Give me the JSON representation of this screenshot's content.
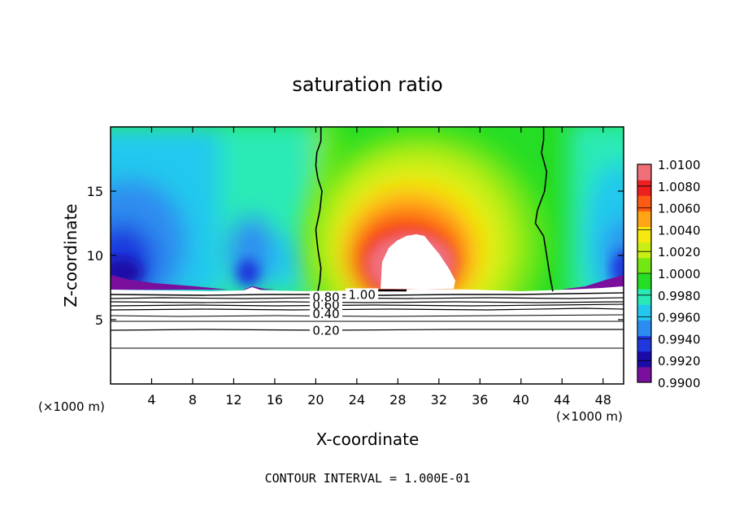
{
  "chart_data": {
    "type": "heatmap",
    "title": "saturation ratio",
    "xlabel": "X-coordinate",
    "ylabel": "Z-coordinate",
    "x_units_left": "(×1000 m)",
    "x_units_right": "(×1000 m)",
    "xlim": [
      0,
      50
    ],
    "ylim": [
      0,
      20
    ],
    "x_ticks": [
      4,
      8,
      12,
      16,
      20,
      24,
      28,
      32,
      36,
      40,
      44,
      48
    ],
    "y_ticks": [
      5,
      10,
      15
    ],
    "footer": "CONTOUR INTERVAL = 1.000E-01",
    "colorbar": {
      "min": 0.99,
      "max": 1.01,
      "labels": [
        "1.0100",
        "1.0080",
        "1.0060",
        "1.0040",
        "1.0020",
        "1.0000",
        "0.9980",
        "0.9960",
        "0.9940",
        "0.9920",
        "0.9900"
      ],
      "colors": [
        "#7a0f9e",
        "#1a0aa8",
        "#1f37dd",
        "#2d8cf0",
        "#24c8ee",
        "#29eab6",
        "#25dd25",
        "#73e712",
        "#c8ef14",
        "#f7e90f",
        "#ffa414",
        "#ff5a14",
        "#ee1f1f",
        "#f0707a"
      ]
    },
    "contour_labels": [
      {
        "text": "0.20",
        "x": 21,
        "z": 4.2
      },
      {
        "text": "0.40",
        "x": 21,
        "z": 5.5
      },
      {
        "text": "0.60",
        "x": 21,
        "z": 6.2
      },
      {
        "text": "0.80",
        "x": 21,
        "z": 6.8
      },
      {
        "text": "1.00",
        "x": 24.5,
        "z": 7.0
      }
    ],
    "unity_contours": [
      {
        "name": "left",
        "x": [
          20.5,
          20.5,
          20.1,
          20.0,
          20.2,
          20.6,
          20.4,
          20.0,
          20.2,
          20.5,
          20.4,
          20.2
        ],
        "z": [
          20.0,
          18.9,
          18.0,
          17.0,
          16.0,
          15.0,
          13.5,
          12.0,
          10.5,
          9.0,
          8.0,
          7.2
        ]
      },
      {
        "name": "right",
        "x": [
          42.2,
          42.2,
          42.0,
          42.5,
          42.3,
          41.6,
          41.4,
          42.2,
          42.5,
          42.8,
          43.1
        ],
        "z": [
          20.0,
          19.0,
          18.0,
          16.5,
          15.0,
          13.5,
          12.5,
          11.5,
          10.0,
          8.5,
          7.2
        ]
      }
    ]
  }
}
